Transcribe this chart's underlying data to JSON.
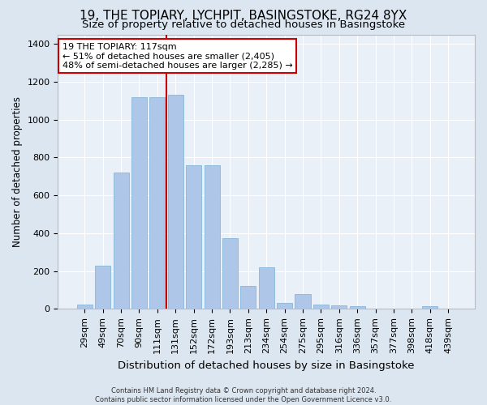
{
  "title": "19, THE TOPIARY, LYCHPIT, BASINGSTOKE, RG24 8YX",
  "subtitle": "Size of property relative to detached houses in Basingstoke",
  "xlabel": "Distribution of detached houses by size in Basingstoke",
  "ylabel": "Number of detached properties",
  "categories": [
    "29sqm",
    "49sqm",
    "70sqm",
    "90sqm",
    "111sqm",
    "131sqm",
    "152sqm",
    "172sqm",
    "193sqm",
    "213sqm",
    "234sqm",
    "254sqm",
    "275sqm",
    "295sqm",
    "316sqm",
    "336sqm",
    "357sqm",
    "377sqm",
    "398sqm",
    "418sqm",
    "439sqm"
  ],
  "values": [
    25,
    230,
    720,
    1120,
    1120,
    1130,
    760,
    760,
    375,
    120,
    220,
    30,
    80,
    25,
    20,
    15,
    0,
    0,
    0,
    15,
    0
  ],
  "bar_color": "#aec6e8",
  "bar_edge_color": "#7aafd4",
  "vline_x": 4.5,
  "vline_color": "#cc0000",
  "annotation_text": "19 THE TOPIARY: 117sqm\n← 51% of detached houses are smaller (2,405)\n48% of semi-detached houses are larger (2,285) →",
  "annotation_box_color": "#ffffff",
  "annotation_box_edge": "#cc0000",
  "footer": "Contains HM Land Registry data © Crown copyright and database right 2024.\nContains public sector information licensed under the Open Government Licence v3.0.",
  "bg_color": "#dce6f0",
  "plot_bg_color": "#eaf0f7",
  "ylim": [
    0,
    1450
  ],
  "title_fontsize": 11,
  "subtitle_fontsize": 9.5,
  "ylabel_fontsize": 8.5,
  "xlabel_fontsize": 9.5,
  "tick_fontsize": 8,
  "footer_fontsize": 6,
  "ann_fontsize": 8
}
